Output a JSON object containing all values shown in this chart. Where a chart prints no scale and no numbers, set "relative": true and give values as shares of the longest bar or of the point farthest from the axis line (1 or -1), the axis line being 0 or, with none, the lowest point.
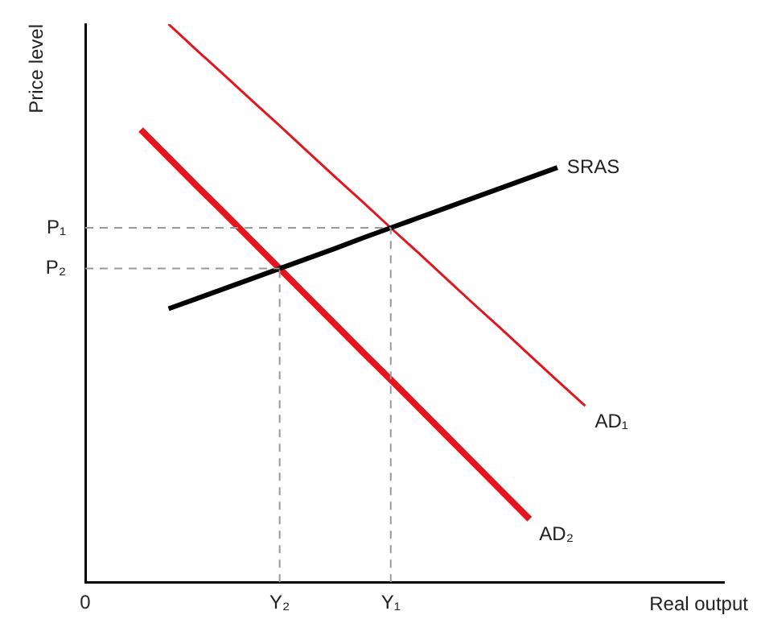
{
  "chart_data": {
    "type": "line",
    "relative": true,
    "xlabel": "Real output",
    "ylabel": "Price level",
    "tick_labels": "x",
    "legend": false,
    "marker": "none",
    "line_style": "solid",
    "categories": [
      "0",
      null,
      null,
      null,
      null,
      null,
      null,
      "Y₂",
      null,
      null,
      null,
      "Y₁",
      null,
      null,
      null,
      null,
      null,
      null,
      null,
      null,
      null,
      null,
      null,
      null
    ],
    "series": [
      {
        "name": "SRAS",
        "color": "#000000",
        "values": [
          null,
          null,
          null,
          0.49,
          0.508,
          0.526,
          0.544,
          0.562,
          0.58,
          0.598,
          0.617,
          0.635,
          0.653,
          0.671,
          0.689,
          0.707,
          0.725,
          0.743,
          null,
          null,
          null,
          null,
          null,
          null
        ]
      },
      {
        "name": "AD₁",
        "color": "#e8141c",
        "values": [
          null,
          null,
          null,
          1.0,
          0.954,
          0.909,
          0.863,
          0.818,
          0.772,
          0.726,
          0.681,
          0.635,
          0.59,
          0.544,
          0.498,
          0.453,
          0.407,
          0.361,
          0.316,
          null,
          null,
          null,
          null,
          null
        ]
      },
      {
        "name": "AD₂",
        "color": "#e8141c",
        "values": [
          null,
          null,
          0.811,
          0.761,
          0.711,
          0.662,
          0.612,
          0.562,
          0.512,
          0.462,
          0.412,
          0.363,
          0.313,
          0.263,
          0.213,
          0.163,
          0.113,
          null,
          null,
          null,
          null,
          null,
          null,
          null
        ]
      }
    ],
    "ref_lines": [
      {
        "axis": "y",
        "value": 0.635,
        "label": "P₁",
        "color": "#999999",
        "line_style": "dashed"
      },
      {
        "axis": "y",
        "value": 0.562,
        "label": "P₂",
        "color": "#999999",
        "line_style": "dashed"
      },
      {
        "axis": "x",
        "value": "Y₁",
        "color": "#999999",
        "line_style": "dashed"
      },
      {
        "axis": "x",
        "value": "Y₂",
        "color": "#999999",
        "line_style": "dashed"
      }
    ]
  }
}
